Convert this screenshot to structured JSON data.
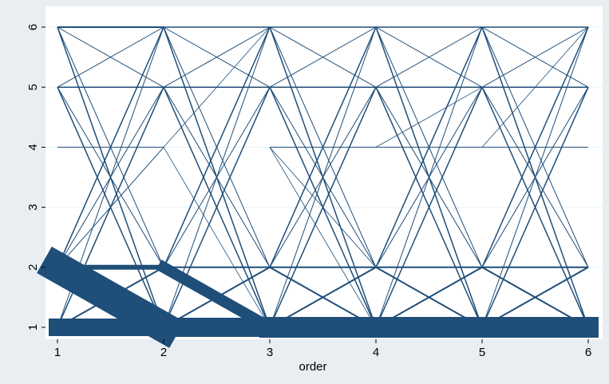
{
  "chart_data": {
    "type": "line",
    "title": "",
    "xlabel": "order",
    "ylabel": "",
    "xlim": [
      1,
      6
    ],
    "ylim": [
      1,
      6
    ],
    "x_ticks": [
      1,
      2,
      3,
      4,
      5,
      6
    ],
    "y_ticks": [
      1,
      2,
      3,
      4,
      5,
      6
    ],
    "grid": "horizontal",
    "legend": "none",
    "line_color": "#1f4e79",
    "background_outer": "#e8eef2",
    "background_plot": "#ffffff",
    "description": "Weighted transition lines between states at consecutive orders; line thickness encodes frequency",
    "transitions": [
      {
        "x": [
          1,
          2
        ],
        "y": [
          6,
          6
        ],
        "w": 2
      },
      {
        "x": [
          1,
          2
        ],
        "y": [
          6,
          5
        ],
        "w": 1
      },
      {
        "x": [
          1,
          2
        ],
        "y": [
          6,
          2
        ],
        "w": 1
      },
      {
        "x": [
          1,
          2
        ],
        "y": [
          6,
          1
        ],
        "w": 1.5
      },
      {
        "x": [
          1,
          2
        ],
        "y": [
          5,
          6
        ],
        "w": 1
      },
      {
        "x": [
          1,
          2
        ],
        "y": [
          5,
          5
        ],
        "w": 1.5
      },
      {
        "x": [
          1,
          2
        ],
        "y": [
          5,
          2
        ],
        "w": 1
      },
      {
        "x": [
          1,
          2
        ],
        "y": [
          5,
          1
        ],
        "w": 1.5
      },
      {
        "x": [
          1,
          2
        ],
        "y": [
          4,
          4
        ],
        "w": 1
      },
      {
        "x": [
          1,
          2
        ],
        "y": [
          2,
          6
        ],
        "w": 1.5
      },
      {
        "x": [
          1,
          2
        ],
        "y": [
          2,
          5
        ],
        "w": 1
      },
      {
        "x": [
          1,
          2
        ],
        "y": [
          2,
          4
        ],
        "w": 1
      },
      {
        "x": [
          1,
          2
        ],
        "y": [
          2,
          2
        ],
        "w": 6
      },
      {
        "x": [
          1,
          2
        ],
        "y": [
          2,
          1
        ],
        "w": 38
      },
      {
        "x": [
          1,
          2
        ],
        "y": [
          1,
          6
        ],
        "w": 1
      },
      {
        "x": [
          1,
          2
        ],
        "y": [
          1,
          5
        ],
        "w": 1.5
      },
      {
        "x": [
          1,
          2
        ],
        "y": [
          1,
          2
        ],
        "w": 2
      },
      {
        "x": [
          1,
          2
        ],
        "y": [
          1,
          1
        ],
        "w": 22
      },
      {
        "x": [
          2,
          3
        ],
        "y": [
          6,
          6
        ],
        "w": 1.5
      },
      {
        "x": [
          2,
          3
        ],
        "y": [
          6,
          5
        ],
        "w": 1
      },
      {
        "x": [
          2,
          3
        ],
        "y": [
          6,
          2
        ],
        "w": 1
      },
      {
        "x": [
          2,
          3
        ],
        "y": [
          6,
          1
        ],
        "w": 1.5
      },
      {
        "x": [
          2,
          3
        ],
        "y": [
          5,
          6
        ],
        "w": 1
      },
      {
        "x": [
          2,
          3
        ],
        "y": [
          5,
          5
        ],
        "w": 1.5
      },
      {
        "x": [
          2,
          3
        ],
        "y": [
          5,
          2
        ],
        "w": 1
      },
      {
        "x": [
          2,
          3
        ],
        "y": [
          5,
          1
        ],
        "w": 1.5
      },
      {
        "x": [
          2,
          3
        ],
        "y": [
          4,
          6
        ],
        "w": 0.8
      },
      {
        "x": [
          2,
          3
        ],
        "y": [
          4,
          1
        ],
        "w": 0.8
      },
      {
        "x": [
          2,
          3
        ],
        "y": [
          2,
          6
        ],
        "w": 1.5
      },
      {
        "x": [
          2,
          3
        ],
        "y": [
          2,
          5
        ],
        "w": 1
      },
      {
        "x": [
          2,
          3
        ],
        "y": [
          2,
          2
        ],
        "w": 2
      },
      {
        "x": [
          2,
          3
        ],
        "y": [
          2,
          1
        ],
        "w": 14
      },
      {
        "x": [
          2,
          3
        ],
        "y": [
          1,
          6
        ],
        "w": 1
      },
      {
        "x": [
          2,
          3
        ],
        "y": [
          1,
          5
        ],
        "w": 1.5
      },
      {
        "x": [
          2,
          3
        ],
        "y": [
          1,
          2
        ],
        "w": 2
      },
      {
        "x": [
          2,
          3
        ],
        "y": [
          1,
          1
        ],
        "w": 24
      },
      {
        "x": [
          3,
          4
        ],
        "y": [
          6,
          6
        ],
        "w": 1.5
      },
      {
        "x": [
          3,
          4
        ],
        "y": [
          6,
          5
        ],
        "w": 1
      },
      {
        "x": [
          3,
          4
        ],
        "y": [
          6,
          2
        ],
        "w": 1
      },
      {
        "x": [
          3,
          4
        ],
        "y": [
          6,
          1
        ],
        "w": 1.5
      },
      {
        "x": [
          3,
          4
        ],
        "y": [
          5,
          6
        ],
        "w": 1
      },
      {
        "x": [
          3,
          4
        ],
        "y": [
          5,
          5
        ],
        "w": 1.5
      },
      {
        "x": [
          3,
          4
        ],
        "y": [
          5,
          2
        ],
        "w": 1
      },
      {
        "x": [
          3,
          4
        ],
        "y": [
          5,
          1
        ],
        "w": 1.5
      },
      {
        "x": [
          3,
          4
        ],
        "y": [
          4,
          4
        ],
        "w": 1
      },
      {
        "x": [
          3,
          4
        ],
        "y": [
          4,
          2
        ],
        "w": 0.8
      },
      {
        "x": [
          3,
          4
        ],
        "y": [
          4,
          1
        ],
        "w": 0.8
      },
      {
        "x": [
          3,
          4
        ],
        "y": [
          2,
          6
        ],
        "w": 1.5
      },
      {
        "x": [
          3,
          4
        ],
        "y": [
          2,
          5
        ],
        "w": 1
      },
      {
        "x": [
          3,
          4
        ],
        "y": [
          2,
          2
        ],
        "w": 2
      },
      {
        "x": [
          3,
          4
        ],
        "y": [
          2,
          1
        ],
        "w": 2
      },
      {
        "x": [
          3,
          4
        ],
        "y": [
          1,
          6
        ],
        "w": 1
      },
      {
        "x": [
          3,
          4
        ],
        "y": [
          1,
          5
        ],
        "w": 1.5
      },
      {
        "x": [
          3,
          4
        ],
        "y": [
          1,
          2
        ],
        "w": 2
      },
      {
        "x": [
          3,
          4
        ],
        "y": [
          1,
          1
        ],
        "w": 26
      },
      {
        "x": [
          4,
          5
        ],
        "y": [
          6,
          6
        ],
        "w": 1.5
      },
      {
        "x": [
          4,
          5
        ],
        "y": [
          6,
          5
        ],
        "w": 1
      },
      {
        "x": [
          4,
          5
        ],
        "y": [
          6,
          2
        ],
        "w": 1
      },
      {
        "x": [
          4,
          5
        ],
        "y": [
          6,
          1
        ],
        "w": 1.5
      },
      {
        "x": [
          4,
          5
        ],
        "y": [
          5,
          6
        ],
        "w": 1
      },
      {
        "x": [
          4,
          5
        ],
        "y": [
          5,
          5
        ],
        "w": 1.5
      },
      {
        "x": [
          4,
          5
        ],
        "y": [
          5,
          2
        ],
        "w": 1
      },
      {
        "x": [
          4,
          5
        ],
        "y": [
          5,
          1
        ],
        "w": 1.5
      },
      {
        "x": [
          4,
          5
        ],
        "y": [
          4,
          4
        ],
        "w": 1
      },
      {
        "x": [
          4,
          5
        ],
        "y": [
          4,
          5
        ],
        "w": 0.8
      },
      {
        "x": [
          4,
          5
        ],
        "y": [
          2,
          6
        ],
        "w": 1.5
      },
      {
        "x": [
          4,
          5
        ],
        "y": [
          2,
          5
        ],
        "w": 1
      },
      {
        "x": [
          4,
          5
        ],
        "y": [
          2,
          2
        ],
        "w": 2
      },
      {
        "x": [
          4,
          5
        ],
        "y": [
          2,
          1
        ],
        "w": 2
      },
      {
        "x": [
          4,
          5
        ],
        "y": [
          1,
          6
        ],
        "w": 1
      },
      {
        "x": [
          4,
          5
        ],
        "y": [
          1,
          5
        ],
        "w": 1.5
      },
      {
        "x": [
          4,
          5
        ],
        "y": [
          1,
          2
        ],
        "w": 2
      },
      {
        "x": [
          4,
          5
        ],
        "y": [
          1,
          1
        ],
        "w": 26
      },
      {
        "x": [
          5,
          6
        ],
        "y": [
          6,
          6
        ],
        "w": 1.5
      },
      {
        "x": [
          5,
          6
        ],
        "y": [
          6,
          5
        ],
        "w": 1
      },
      {
        "x": [
          5,
          6
        ],
        "y": [
          6,
          2
        ],
        "w": 1
      },
      {
        "x": [
          5,
          6
        ],
        "y": [
          6,
          1
        ],
        "w": 1.5
      },
      {
        "x": [
          5,
          6
        ],
        "y": [
          5,
          6
        ],
        "w": 1
      },
      {
        "x": [
          5,
          6
        ],
        "y": [
          5,
          5
        ],
        "w": 1.5
      },
      {
        "x": [
          5,
          6
        ],
        "y": [
          5,
          2
        ],
        "w": 1
      },
      {
        "x": [
          5,
          6
        ],
        "y": [
          5,
          1
        ],
        "w": 1.5
      },
      {
        "x": [
          5,
          6
        ],
        "y": [
          4,
          4
        ],
        "w": 1
      },
      {
        "x": [
          5,
          6
        ],
        "y": [
          4,
          6
        ],
        "w": 0.8
      },
      {
        "x": [
          5,
          6
        ],
        "y": [
          2,
          6
        ],
        "w": 1.5
      },
      {
        "x": [
          5,
          6
        ],
        "y": [
          2,
          5
        ],
        "w": 1
      },
      {
        "x": [
          5,
          6
        ],
        "y": [
          2,
          2
        ],
        "w": 2
      },
      {
        "x": [
          5,
          6
        ],
        "y": [
          2,
          1
        ],
        "w": 2
      },
      {
        "x": [
          5,
          6
        ],
        "y": [
          1,
          6
        ],
        "w": 1
      },
      {
        "x": [
          5,
          6
        ],
        "y": [
          1,
          5
        ],
        "w": 1.5
      },
      {
        "x": [
          5,
          6
        ],
        "y": [
          1,
          2
        ],
        "w": 2
      },
      {
        "x": [
          5,
          6
        ],
        "y": [
          1,
          1
        ],
        "w": 26
      }
    ]
  }
}
